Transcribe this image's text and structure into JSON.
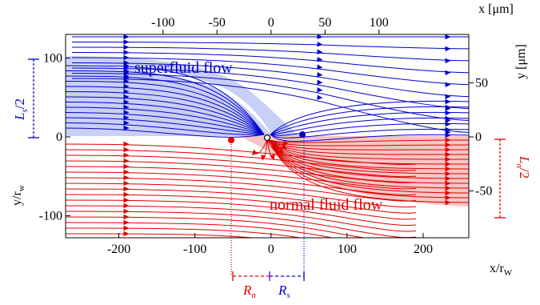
{
  "chart_data": {
    "type": "streamline-diagram",
    "bottom_axis": {
      "label": "x/r",
      "label_sub": "W",
      "ticks": [
        "-200",
        "-100",
        "0",
        "100",
        "200"
      ],
      "tick_values": [
        -200,
        -100,
        0,
        100,
        200
      ],
      "range": [
        -270,
        260
      ]
    },
    "left_axis": {
      "label": "y/r",
      "label_sub": "w",
      "ticks": [
        "100",
        "0",
        "-100"
      ],
      "tick_values": [
        100,
        0,
        -100
      ],
      "range": [
        -128,
        130
      ]
    },
    "top_axis": {
      "label": "x [μm]",
      "ticks": [
        "-100",
        "-50",
        "0",
        "50",
        "100"
      ],
      "tick_values": [
        -100,
        -50,
        0,
        50,
        100
      ]
    },
    "right_axis": {
      "label": "y [μm]",
      "ticks": [
        "50",
        "0",
        "-50"
      ],
      "tick_values": [
        50,
        0,
        -50
      ]
    },
    "regions": [
      {
        "name": "superfluid flow",
        "color": "#0000cc",
        "fill": "#c9d0f5"
      },
      {
        "name": "normal fluid flow",
        "color": "#e00000",
        "fill": "#f6c5c5"
      }
    ],
    "stagnation_points": {
      "superfluid_x": 45,
      "normal_x": -47
    },
    "annotations": {
      "Ls_half": {
        "text": "L",
        "sub": "s",
        "suffix": "/2",
        "color": "#0000cc",
        "span": [
          0,
          100
        ]
      },
      "Ln_half": {
        "text": "L",
        "sub": "n",
        "suffix": "/2",
        "color": "#e00000",
        "span": [
          0,
          -100
        ]
      },
      "Rn": {
        "text": "R",
        "sub": "n",
        "color": "#e00000",
        "span": [
          -47,
          0
        ]
      },
      "Rs": {
        "text": "R",
        "sub": "s",
        "color": "#0000cc",
        "span": [
          0,
          45
        ]
      }
    }
  }
}
